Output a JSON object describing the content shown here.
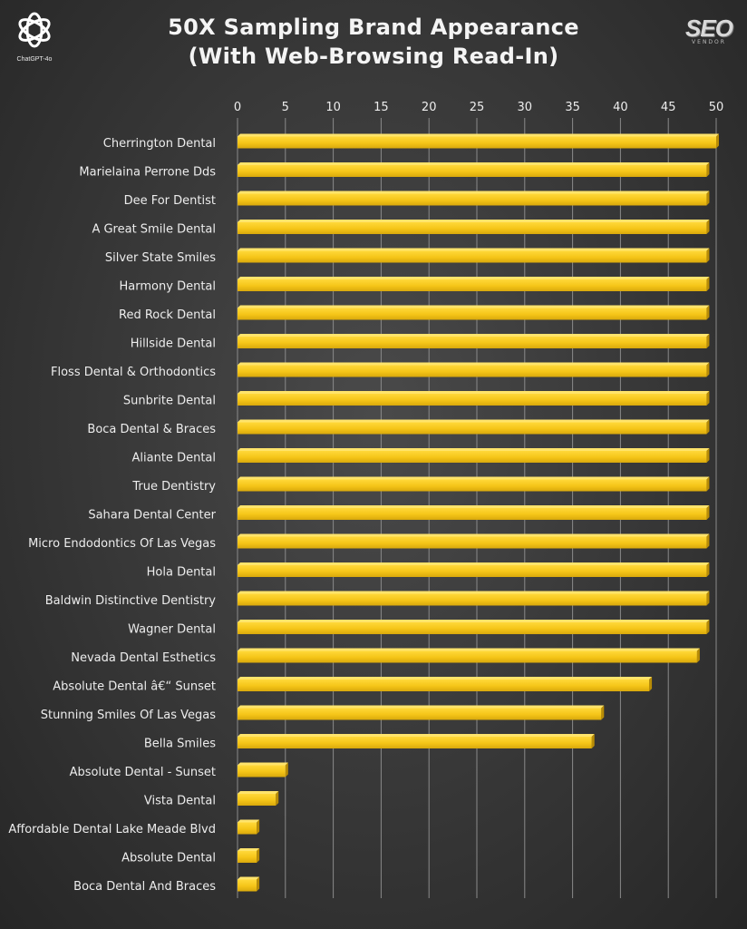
{
  "header": {
    "title_line1": "50X Sampling Brand Appearance",
    "title_line2": "(With Web-Browsing Read-In)",
    "left_logo_caption": "ChatGPT-4o",
    "right_logo_text": "SEO",
    "right_logo_sub": "VENDOR"
  },
  "chart_data": {
    "type": "bar",
    "orientation": "horizontal",
    "title": "50X Sampling Brand Appearance (With Web-Browsing Read-In)",
    "xlim": [
      0,
      50
    ],
    "xticks": [
      0,
      5,
      10,
      15,
      20,
      25,
      30,
      35,
      40,
      45,
      50
    ],
    "xaxis_position": "top",
    "grid": true,
    "bar_color": "#f5c518",
    "categories": [
      "Cherrington Dental",
      "Marielaina Perrone Dds",
      "Dee For Dentist",
      "A Great Smile Dental",
      "Silver State Smiles",
      "Harmony Dental",
      "Red Rock Dental",
      "Hillside Dental",
      "Floss Dental & Orthodontics",
      "Sunbrite Dental",
      "Boca Dental & Braces",
      "Aliante Dental",
      "True Dentistry",
      "Sahara Dental Center",
      "Micro Endodontics Of Las Vegas",
      "Hola Dental",
      "Baldwin Distinctive Dentistry",
      "Wagner Dental",
      "Nevada Dental Esthetics",
      "Absolute Dental â€“ Sunset",
      "Stunning Smiles Of Las Vegas",
      "Bella Smiles",
      "Absolute Dental - Sunset",
      "Vista Dental",
      "Affordable Dental Lake Meade Blvd",
      "Absolute Dental",
      "Boca Dental And Braces"
    ],
    "values": [
      50,
      49,
      49,
      49,
      49,
      49,
      49,
      49,
      49,
      49,
      49,
      49,
      49,
      49,
      49,
      49,
      49,
      49,
      48,
      43,
      38,
      37,
      5,
      4,
      2,
      2,
      2
    ]
  }
}
